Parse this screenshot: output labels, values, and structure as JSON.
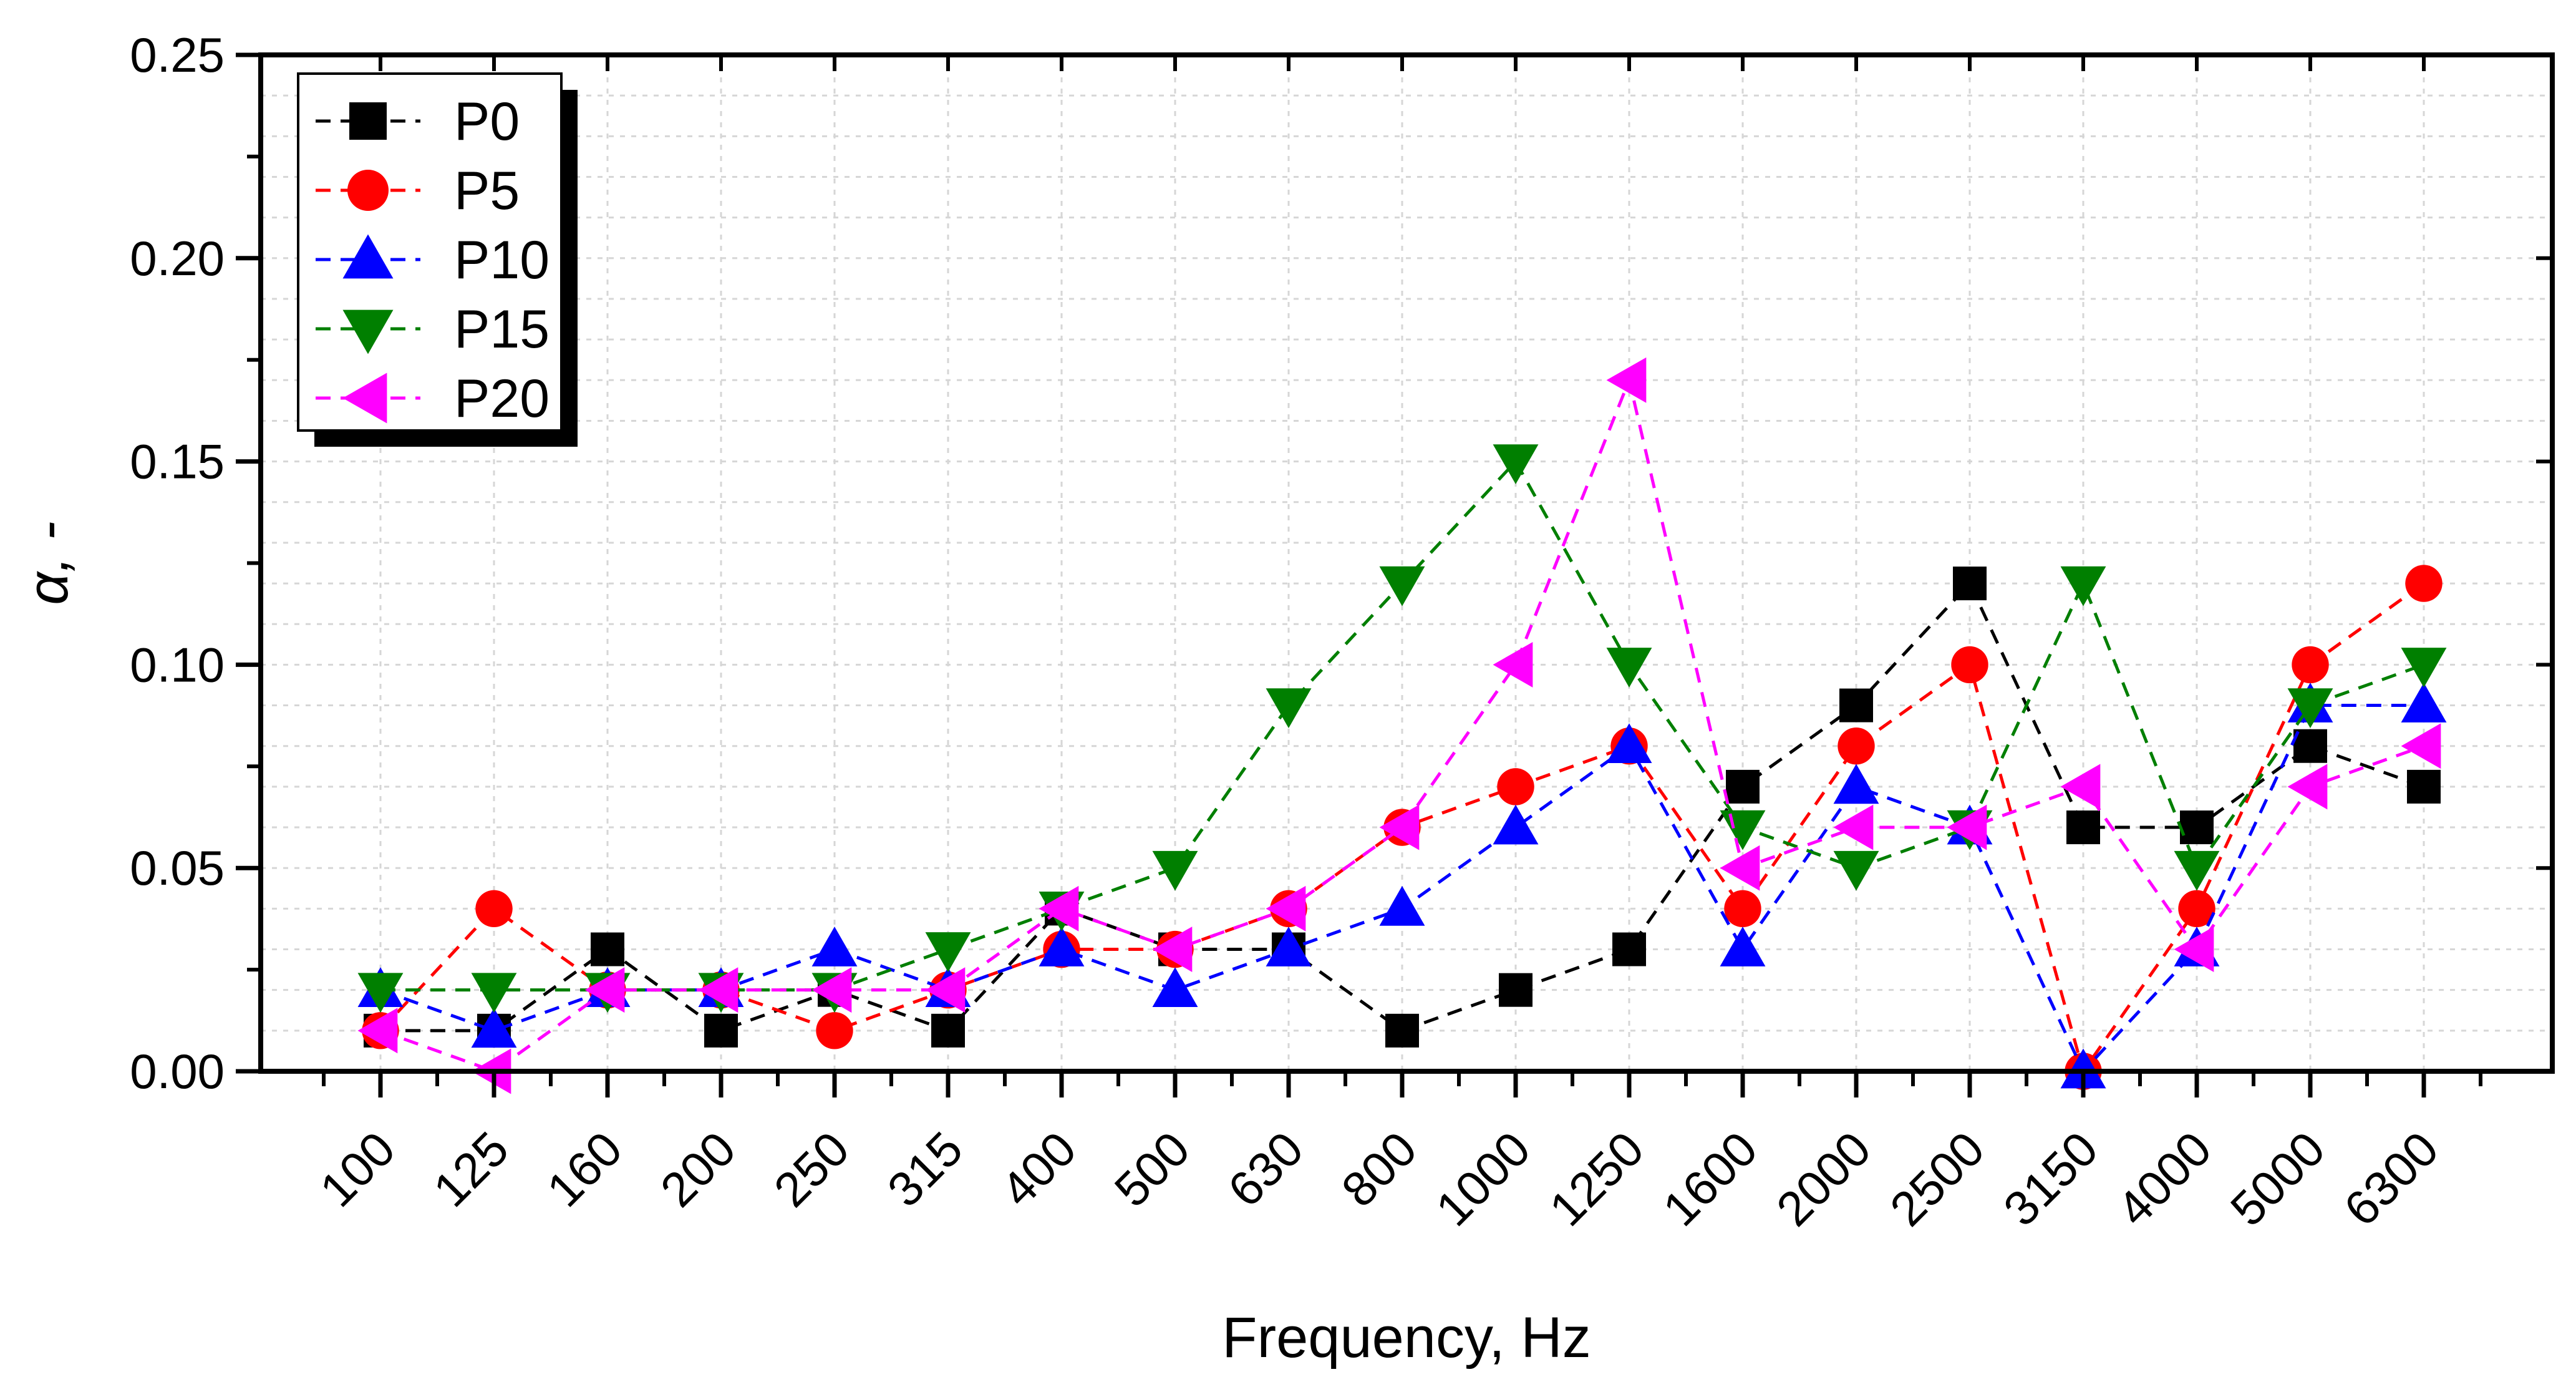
{
  "chart_data": {
    "type": "line",
    "title": "",
    "xlabel": "Frequency, Hz",
    "ylabel": "α, -",
    "ylim": [
      0,
      0.25
    ],
    "yticks": [
      "0.00",
      "0.05",
      "0.10",
      "0.15",
      "0.20",
      "0.25"
    ],
    "ytick_values": [
      0,
      0.05,
      0.1,
      0.15,
      0.2,
      0.25
    ],
    "categories": [
      "100",
      "125",
      "160",
      "200",
      "250",
      "315",
      "400",
      "500",
      "630",
      "800",
      "1000",
      "1250",
      "1600",
      "2000",
      "2500",
      "3150",
      "4000",
      "5000",
      "6300"
    ],
    "grid": true,
    "legend_position": "top-left",
    "series": [
      {
        "name": "P0",
        "color": "#000000",
        "marker": "square",
        "values": [
          0.01,
          0.01,
          0.03,
          0.01,
          0.02,
          0.01,
          0.04,
          0.03,
          0.03,
          0.01,
          0.02,
          0.03,
          0.07,
          0.09,
          0.12,
          0.06,
          0.06,
          0.08,
          0.07
        ]
      },
      {
        "name": "P5",
        "color": "#ff0000",
        "marker": "circle",
        "values": [
          0.01,
          0.04,
          0.02,
          0.02,
          0.01,
          0.02,
          0.03,
          0.03,
          0.04,
          0.06,
          0.07,
          0.08,
          0.04,
          0.08,
          0.1,
          0.0,
          0.04,
          0.1,
          0.12
        ]
      },
      {
        "name": "P10",
        "color": "#0000ff",
        "marker": "triangle-up",
        "values": [
          0.02,
          0.01,
          0.02,
          0.02,
          0.03,
          0.02,
          0.03,
          0.02,
          0.03,
          0.04,
          0.06,
          0.08,
          0.03,
          0.07,
          0.06,
          0.0,
          0.03,
          0.09,
          0.09
        ]
      },
      {
        "name": "P15",
        "color": "#007f00",
        "marker": "triangle-down",
        "values": [
          0.02,
          0.02,
          0.02,
          0.02,
          0.02,
          0.03,
          0.04,
          0.05,
          0.09,
          0.12,
          0.15,
          0.1,
          0.06,
          0.05,
          0.06,
          0.12,
          0.05,
          0.09,
          0.1
        ]
      },
      {
        "name": "P20",
        "color": "#ff00ff",
        "marker": "triangle-left",
        "values": [
          0.01,
          0.0,
          0.02,
          0.02,
          0.02,
          0.02,
          0.04,
          0.03,
          0.04,
          0.06,
          0.1,
          0.17,
          0.05,
          0.06,
          0.06,
          0.07,
          0.03,
          0.07,
          0.08
        ]
      }
    ]
  }
}
